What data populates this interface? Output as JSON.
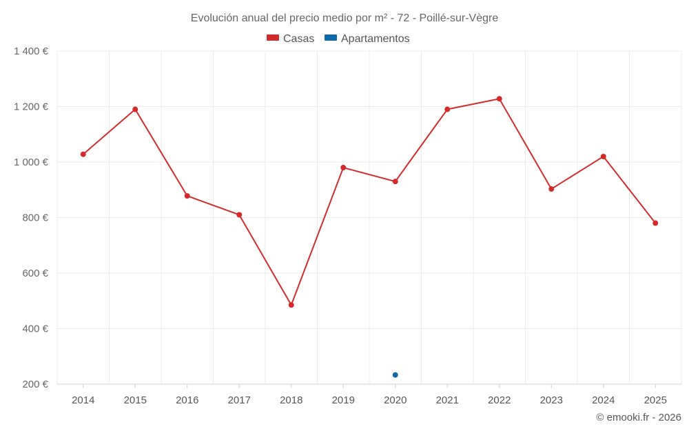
{
  "chart_data": {
    "type": "line",
    "title": "Evolución anual del precio medio por m² - 72 - Poillé-sur-Vègre",
    "categories": [
      "2014",
      "2015",
      "2016",
      "2017",
      "2018",
      "2019",
      "2020",
      "2021",
      "2022",
      "2023",
      "2024",
      "2025"
    ],
    "series": [
      {
        "name": "Casas",
        "color": "#d32a2a",
        "values": [
          1028,
          1190,
          878,
          810,
          485,
          980,
          930,
          1190,
          1228,
          903,
          1020,
          780
        ]
      },
      {
        "name": "Apartamentos",
        "color": "#0e6aa8",
        "values": [
          null,
          null,
          null,
          null,
          null,
          null,
          233,
          null,
          null,
          null,
          null,
          null
        ]
      }
    ],
    "ylim": [
      200,
      1400
    ],
    "yticks": [
      200,
      400,
      600,
      800,
      1000,
      1200,
      1400
    ],
    "ytick_labels": [
      "200 €",
      "400 €",
      "600 €",
      "800 €",
      "1 000 €",
      "1 200 €",
      "1 400 €"
    ],
    "grid": true,
    "legend": "top-center",
    "xlabel": "",
    "ylabel": ""
  },
  "credit": "© emooki.fr - 2026"
}
